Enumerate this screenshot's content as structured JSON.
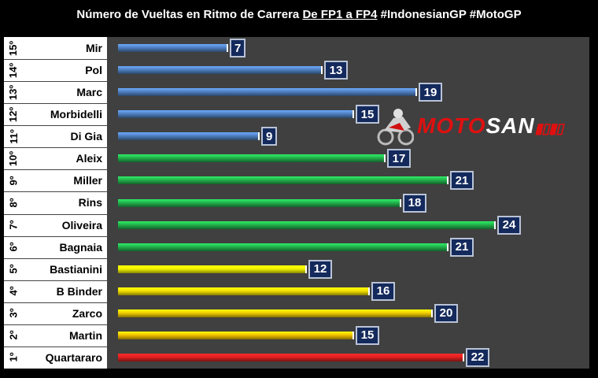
{
  "title": {
    "prefix": "Número de Vueltas en Ritmo de Carrera ",
    "underlined": "De FP1 a FP4",
    "suffix": " #IndonesianGP #MotoGP"
  },
  "watermark": {
    "part1": "MOTO",
    "part2": "SAN"
  },
  "chart_data": {
    "type": "bar",
    "orientation": "horizontal",
    "title": "Número de Vueltas en Ritmo de Carrera De FP1 a FP4 #IndonesianGP #MotoGP",
    "xlim": [
      0,
      30
    ],
    "rows": [
      {
        "rank": "15º",
        "rider": "Mir",
        "value": 7,
        "color": "#4f7fbf"
      },
      {
        "rank": "14º",
        "rider": "Pol",
        "value": 13,
        "color": "#4f7fbf"
      },
      {
        "rank": "13º",
        "rider": "Marc",
        "value": 19,
        "color": "#4f7fbf"
      },
      {
        "rank": "12º",
        "rider": "Morbidelli",
        "value": 15,
        "color": "#4f7fbf"
      },
      {
        "rank": "11º",
        "rider": "Di Gia",
        "value": 9,
        "color": "#4f7fbf"
      },
      {
        "rank": "10º",
        "rider": "Aleix",
        "value": 17,
        "color": "#22b14c"
      },
      {
        "rank": "9º",
        "rider": "Miller",
        "value": 21,
        "color": "#22b14c"
      },
      {
        "rank": "8º",
        "rider": "Rins",
        "value": 18,
        "color": "#22b14c"
      },
      {
        "rank": "7º",
        "rider": "Oliveira",
        "value": 24,
        "color": "#22b14c"
      },
      {
        "rank": "6º",
        "rider": "Bagnaia",
        "value": 21,
        "color": "#22b14c"
      },
      {
        "rank": "5º",
        "rider": "Bastianini",
        "value": 12,
        "color": "#f2f200"
      },
      {
        "rank": "4º",
        "rider": "B Binder",
        "value": 16,
        "color": "#f2e000"
      },
      {
        "rank": "3º",
        "rider": "Zarco",
        "value": 20,
        "color": "#f0cc00"
      },
      {
        "rank": "2º",
        "rider": "Martin",
        "value": 15,
        "color": "#f0c000"
      },
      {
        "rank": "1º",
        "rider": "Quartararo",
        "value": 22,
        "color": "#e02020"
      }
    ]
  }
}
